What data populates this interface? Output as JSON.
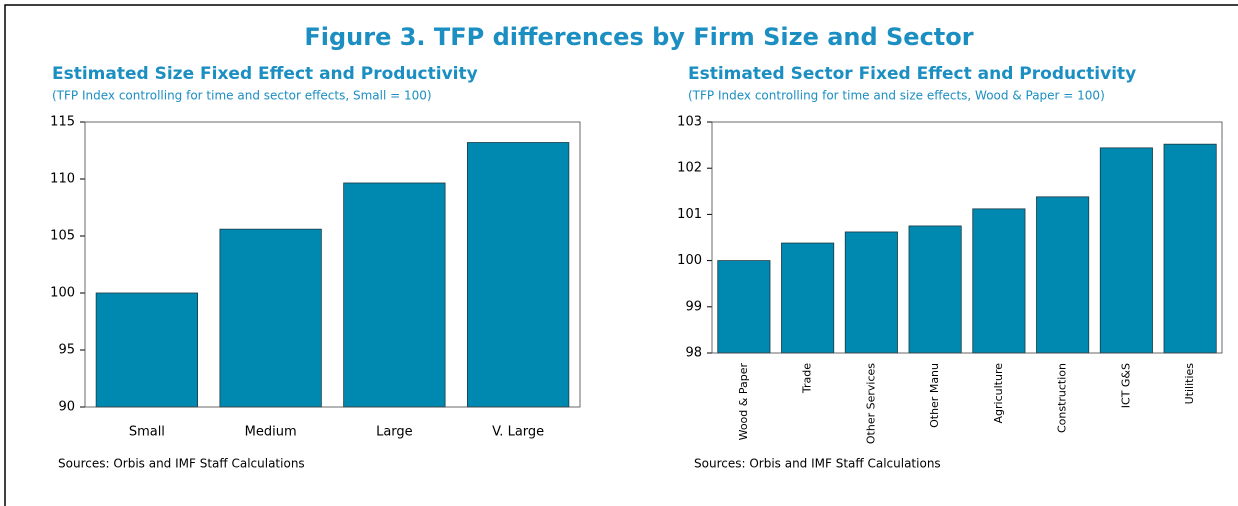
{
  "figure_title": "Figure 3. TFP differences by Firm Size and Sector",
  "chart_data": [
    {
      "type": "bar",
      "title": "Estimated Size Fixed Effect and Productivity",
      "subtitle": "(TFP Index controlling for time and sector effects, Small = 100)",
      "source": "Sources: Orbis and IMF Staff Calculations",
      "categories": [
        "Small",
        "Medium",
        "Large",
        "V. Large"
      ],
      "values": [
        100,
        105.6,
        109.65,
        113.2
      ],
      "color": "#0089b0",
      "ylim": [
        90,
        115
      ],
      "yticks": [
        90,
        95,
        100,
        105,
        110,
        115
      ],
      "grid": false
    },
    {
      "type": "bar",
      "title": "Estimated Sector Fixed Effect and Productivity",
      "subtitle": "(TFP Index controlling for time and size effects, Wood & Paper = 100)",
      "source": "Sources: Orbis and IMF Staff Calculations",
      "categories": [
        "Wood & Paper",
        "Trade",
        "Other Services",
        "Other Manu",
        "Agriculture",
        "Construction",
        "ICT G&S",
        "Utilities"
      ],
      "values": [
        100,
        100.38,
        100.62,
        100.75,
        101.12,
        101.38,
        102.44,
        102.52
      ],
      "color": "#0089b0",
      "ylim": [
        98,
        103
      ],
      "yticks": [
        98,
        99,
        100,
        101,
        102,
        103
      ],
      "grid": false
    }
  ]
}
